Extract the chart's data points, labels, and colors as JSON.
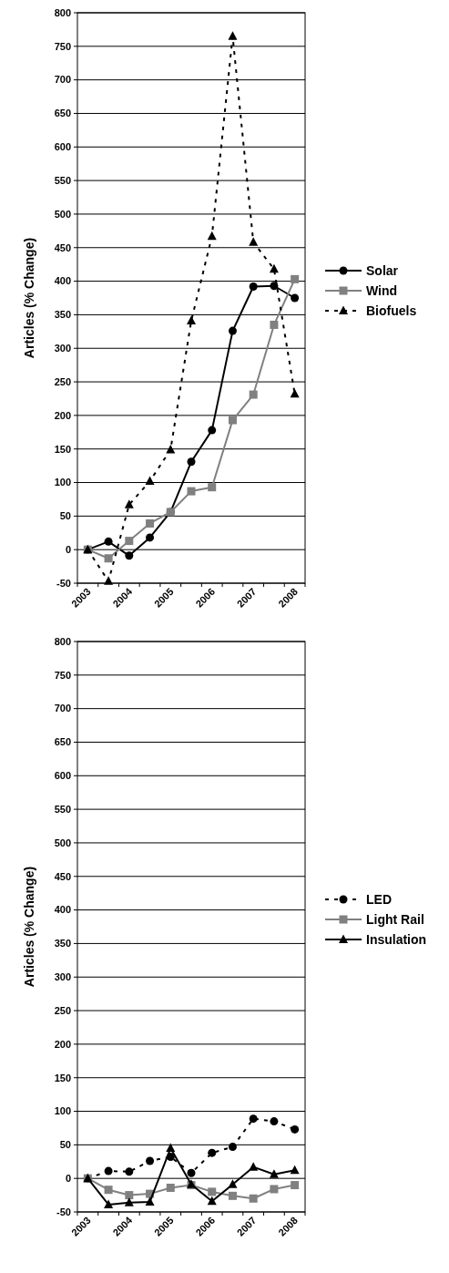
{
  "chart_data": [
    {
      "type": "line",
      "ylabel": "Articles (% Change)",
      "categories": [
        "2003",
        null,
        "2004",
        null,
        "2005",
        null,
        "2006",
        null,
        "2007",
        null,
        "2008"
      ],
      "ylim": [
        -50,
        800
      ],
      "yticks": [
        -50,
        0,
        50,
        100,
        150,
        200,
        250,
        300,
        350,
        400,
        450,
        500,
        550,
        600,
        650,
        700,
        750,
        800
      ],
      "grid": "y",
      "legend": "right",
      "series": [
        {
          "name": "Solar",
          "color": "#000000",
          "marker": "circle",
          "line_style": "solid",
          "values": [
            0,
            12,
            -9,
            18,
            56,
            131,
            178,
            326,
            392,
            393,
            375
          ]
        },
        {
          "name": "Wind",
          "color": "#808080",
          "marker": "square",
          "line_style": "solid",
          "values": [
            0,
            -13,
            13,
            39,
            56,
            87,
            93,
            193,
            231,
            335,
            403
          ]
        },
        {
          "name": "Biofuels",
          "color": "#000000",
          "marker": "triangle",
          "line_style": "dashed",
          "values": [
            0,
            -47,
            67,
            102,
            149,
            341,
            467,
            765,
            458,
            418,
            232
          ]
        }
      ]
    },
    {
      "type": "line",
      "ylabel": "Articles (% Change)",
      "categories": [
        "2003",
        null,
        "2004",
        null,
        "2005",
        null,
        "2006",
        null,
        "2007",
        null,
        "2008"
      ],
      "ylim": [
        -50,
        800
      ],
      "yticks": [
        -50,
        0,
        50,
        100,
        150,
        200,
        250,
        300,
        350,
        400,
        450,
        500,
        550,
        600,
        650,
        700,
        750,
        800
      ],
      "grid": "y",
      "legend": "right",
      "series": [
        {
          "name": "LED",
          "color": "#000000",
          "marker": "circle",
          "line_style": "dashed",
          "values": [
            0,
            11,
            10,
            26,
            32,
            8,
            38,
            47,
            89,
            85,
            73
          ]
        },
        {
          "name": "Light Rail",
          "color": "#808080",
          "marker": "square",
          "line_style": "solid",
          "values": [
            0,
            -17,
            -25,
            -23,
            -14,
            -10,
            -20,
            -26,
            -30,
            -16,
            -10
          ]
        },
        {
          "name": "Insulation",
          "color": "#000000",
          "marker": "triangle",
          "line_style": "solid",
          "values": [
            0,
            -39,
            -36,
            -35,
            45,
            -9,
            -34,
            -9,
            17,
            6,
            12
          ]
        }
      ]
    }
  ]
}
